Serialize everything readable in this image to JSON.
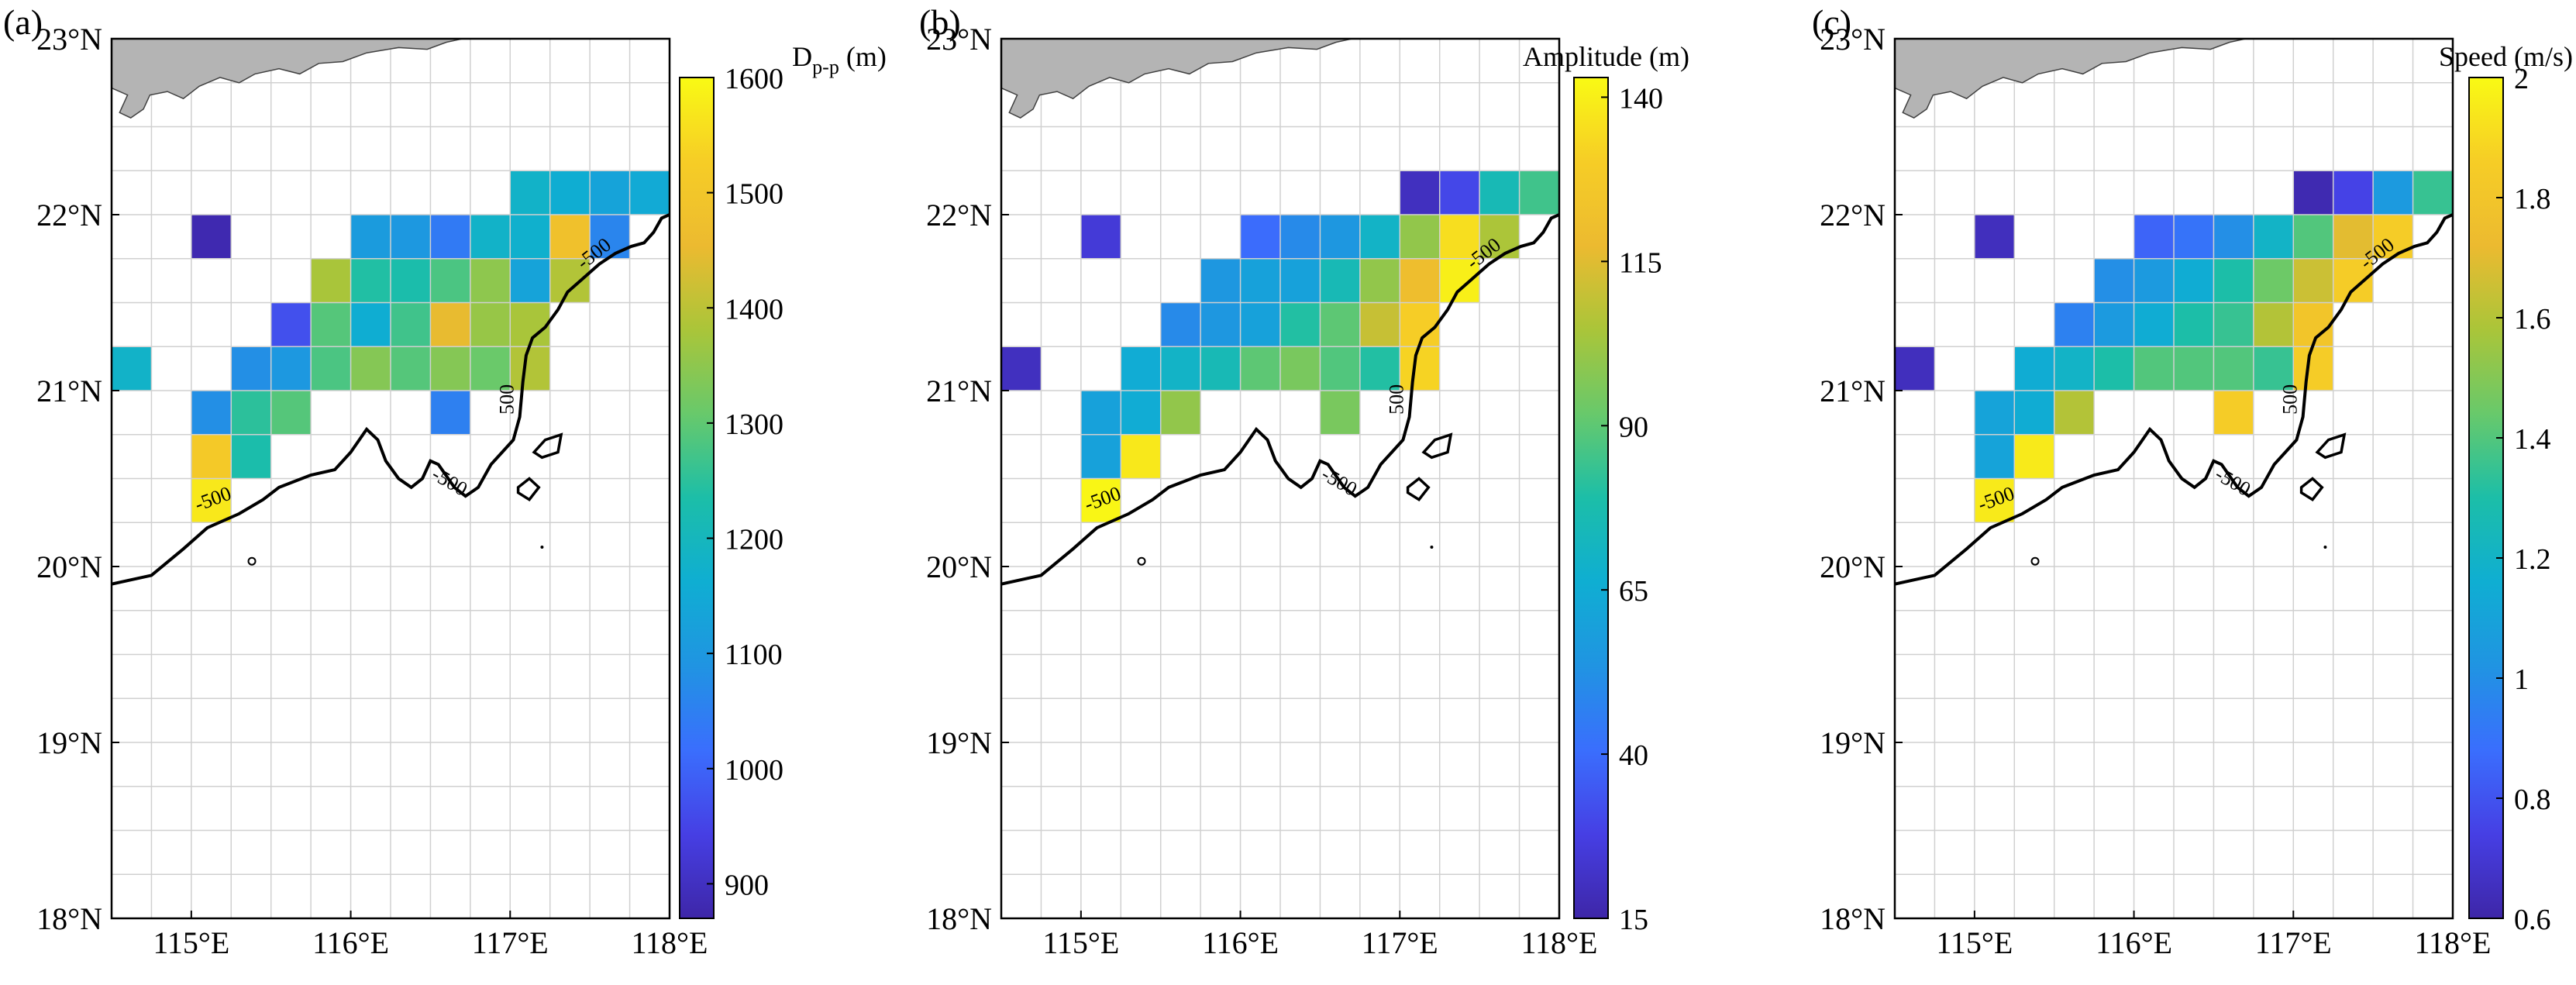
{
  "figure": {
    "panels": [
      {
        "label": "(a)",
        "colorbar_label": "Dp-p (m)",
        "colorbar_label_main": "D",
        "colorbar_label_sub": "p-p",
        "colorbar_label_unit": " (m)"
      },
      {
        "label": "(b)",
        "colorbar_label": "Amplitude (m)"
      },
      {
        "label": "(c)",
        "colorbar_label": "Speed (m/s)"
      }
    ],
    "contour_label": "-500",
    "contour_label_vertical": "500"
  },
  "chart_data": [
    {
      "type": "heatmap",
      "title": "(a)",
      "colorbar_label": "Dp-p (m)",
      "x_ticks": [
        "115°E",
        "116°E",
        "117°E",
        "118°E"
      ],
      "x_tick_values": [
        115,
        116,
        117,
        118
      ],
      "y_ticks": [
        "18°N",
        "19°N",
        "20°N",
        "21°N",
        "22°N",
        "23°N"
      ],
      "y_tick_values": [
        18,
        19,
        20,
        21,
        22,
        23
      ],
      "xlim": [
        114.5,
        118
      ],
      "ylim": [
        18,
        23
      ],
      "grid_step": 0.25,
      "clim": [
        870,
        1600
      ],
      "colorbar_ticks": [
        900,
        1000,
        1100,
        1200,
        1300,
        1400,
        1500,
        1600
      ],
      "cells": [
        {
          "lon": 115.0,
          "lat": 21.75,
          "v": 880
        },
        {
          "lon": 116.0,
          "lat": 21.75,
          "v": 1110
        },
        {
          "lon": 116.25,
          "lat": 21.75,
          "v": 1100
        },
        {
          "lon": 116.5,
          "lat": 21.75,
          "v": 1040
        },
        {
          "lon": 116.75,
          "lat": 21.75,
          "v": 1180
        },
        {
          "lon": 117.0,
          "lat": 21.75,
          "v": 1170
        },
        {
          "lon": 117.25,
          "lat": 21.75,
          "v": 1480
        },
        {
          "lon": 117.5,
          "lat": 21.75,
          "v": 1060
        },
        {
          "lon": 117.0,
          "lat": 22.0,
          "v": 1180
        },
        {
          "lon": 117.25,
          "lat": 22.0,
          "v": 1160
        },
        {
          "lon": 117.5,
          "lat": 22.0,
          "v": 1130
        },
        {
          "lon": 117.75,
          "lat": 22.0,
          "v": 1150
        },
        {
          "lon": 115.75,
          "lat": 21.5,
          "v": 1380
        },
        {
          "lon": 116.0,
          "lat": 21.5,
          "v": 1240
        },
        {
          "lon": 116.25,
          "lat": 21.5,
          "v": 1230
        },
        {
          "lon": 116.5,
          "lat": 21.5,
          "v": 1280
        },
        {
          "lon": 116.75,
          "lat": 21.5,
          "v": 1350
        },
        {
          "lon": 117.0,
          "lat": 21.5,
          "v": 1130
        },
        {
          "lon": 117.25,
          "lat": 21.5,
          "v": 1390
        },
        {
          "lon": 115.5,
          "lat": 21.25,
          "v": 970
        },
        {
          "lon": 115.75,
          "lat": 21.25,
          "v": 1290
        },
        {
          "lon": 116.0,
          "lat": 21.25,
          "v": 1160
        },
        {
          "lon": 116.25,
          "lat": 21.25,
          "v": 1270
        },
        {
          "lon": 116.5,
          "lat": 21.25,
          "v": 1450
        },
        {
          "lon": 116.75,
          "lat": 21.25,
          "v": 1360
        },
        {
          "lon": 117.0,
          "lat": 21.25,
          "v": 1380
        },
        {
          "lon": 114.5,
          "lat": 21.0,
          "v": 1180
        },
        {
          "lon": 115.25,
          "lat": 21.0,
          "v": 1080
        },
        {
          "lon": 115.5,
          "lat": 21.0,
          "v": 1100
        },
        {
          "lon": 115.75,
          "lat": 21.0,
          "v": 1280
        },
        {
          "lon": 116.0,
          "lat": 21.0,
          "v": 1340
        },
        {
          "lon": 116.25,
          "lat": 21.0,
          "v": 1290
        },
        {
          "lon": 116.5,
          "lat": 21.0,
          "v": 1340
        },
        {
          "lon": 116.75,
          "lat": 21.0,
          "v": 1310
        },
        {
          "lon": 117.0,
          "lat": 21.0,
          "v": 1390
        },
        {
          "lon": 115.0,
          "lat": 20.75,
          "v": 1080
        },
        {
          "lon": 115.25,
          "lat": 20.75,
          "v": 1250
        },
        {
          "lon": 115.5,
          "lat": 20.75,
          "v": 1290
        },
        {
          "lon": 116.5,
          "lat": 20.75,
          "v": 1050
        },
        {
          "lon": 115.0,
          "lat": 20.5,
          "v": 1510
        },
        {
          "lon": 115.25,
          "lat": 20.5,
          "v": 1230
        },
        {
          "lon": 115.0,
          "lat": 20.25,
          "v": 1570
        }
      ]
    },
    {
      "type": "heatmap",
      "title": "(b)",
      "colorbar_label": "Amplitude (m)",
      "x_ticks": [
        "115°E",
        "116°E",
        "117°E",
        "118°E"
      ],
      "x_tick_values": [
        115,
        116,
        117,
        118
      ],
      "y_ticks": [
        "18°N",
        "19°N",
        "20°N",
        "21°N",
        "22°N",
        "23°N"
      ],
      "y_tick_values": [
        18,
        19,
        20,
        21,
        22,
        23
      ],
      "xlim": [
        114.5,
        118
      ],
      "ylim": [
        18,
        23
      ],
      "grid_step": 0.25,
      "clim": [
        15,
        143
      ],
      "colorbar_ticks": [
        15,
        40,
        65,
        90,
        115,
        140
      ],
      "cells": [
        {
          "lon": 115.0,
          "lat": 21.75,
          "v": 25
        },
        {
          "lon": 117.0,
          "lat": 22.0,
          "v": 20
        },
        {
          "lon": 117.25,
          "lat": 22.0,
          "v": 30
        },
        {
          "lon": 117.5,
          "lat": 22.0,
          "v": 75
        },
        {
          "lon": 117.75,
          "lat": 22.0,
          "v": 85
        },
        {
          "lon": 116.0,
          "lat": 21.75,
          "v": 40
        },
        {
          "lon": 116.25,
          "lat": 21.75,
          "v": 50
        },
        {
          "lon": 116.5,
          "lat": 21.75,
          "v": 55
        },
        {
          "lon": 116.75,
          "lat": 21.75,
          "v": 70
        },
        {
          "lon": 117.0,
          "lat": 21.75,
          "v": 100
        },
        {
          "lon": 117.25,
          "lat": 21.75,
          "v": 135
        },
        {
          "lon": 117.5,
          "lat": 21.75,
          "v": 105
        },
        {
          "lon": 115.75,
          "lat": 21.5,
          "v": 55
        },
        {
          "lon": 116.0,
          "lat": 21.5,
          "v": 60
        },
        {
          "lon": 116.25,
          "lat": 21.5,
          "v": 60
        },
        {
          "lon": 116.5,
          "lat": 21.5,
          "v": 75
        },
        {
          "lon": 116.75,
          "lat": 21.5,
          "v": 100
        },
        {
          "lon": 117.0,
          "lat": 21.5,
          "v": 120
        },
        {
          "lon": 117.25,
          "lat": 21.5,
          "v": 140
        },
        {
          "lon": 115.5,
          "lat": 21.25,
          "v": 50
        },
        {
          "lon": 115.75,
          "lat": 21.25,
          "v": 55
        },
        {
          "lon": 116.0,
          "lat": 21.25,
          "v": 60
        },
        {
          "lon": 116.25,
          "lat": 21.25,
          "v": 80
        },
        {
          "lon": 116.5,
          "lat": 21.25,
          "v": 90
        },
        {
          "lon": 116.75,
          "lat": 21.25,
          "v": 110
        },
        {
          "lon": 117.0,
          "lat": 21.25,
          "v": 130
        },
        {
          "lon": 114.5,
          "lat": 21.0,
          "v": 20
        },
        {
          "lon": 115.25,
          "lat": 21.0,
          "v": 65
        },
        {
          "lon": 115.5,
          "lat": 21.0,
          "v": 70
        },
        {
          "lon": 115.75,
          "lat": 21.0,
          "v": 75
        },
        {
          "lon": 116.0,
          "lat": 21.0,
          "v": 90
        },
        {
          "lon": 116.25,
          "lat": 21.0,
          "v": 95
        },
        {
          "lon": 116.5,
          "lat": 21.0,
          "v": 88
        },
        {
          "lon": 116.75,
          "lat": 21.0,
          "v": 80
        },
        {
          "lon": 117.0,
          "lat": 21.0,
          "v": 132
        },
        {
          "lon": 115.0,
          "lat": 20.75,
          "v": 60
        },
        {
          "lon": 115.25,
          "lat": 20.75,
          "v": 65
        },
        {
          "lon": 115.5,
          "lat": 20.75,
          "v": 100
        },
        {
          "lon": 116.5,
          "lat": 20.75,
          "v": 95
        },
        {
          "lon": 115.0,
          "lat": 20.5,
          "v": 60
        },
        {
          "lon": 115.25,
          "lat": 20.5,
          "v": 138
        },
        {
          "lon": 115.0,
          "lat": 20.25,
          "v": 142
        }
      ]
    },
    {
      "type": "heatmap",
      "title": "(c)",
      "colorbar_label": "Speed (m/s)",
      "x_ticks": [
        "115°E",
        "116°E",
        "117°E",
        "118°E"
      ],
      "x_tick_values": [
        115,
        116,
        117,
        118
      ],
      "y_ticks": [
        "18°N",
        "19°N",
        "20°N",
        "21°N",
        "22°N",
        "23°N"
      ],
      "y_tick_values": [
        18,
        19,
        20,
        21,
        22,
        23
      ],
      "xlim": [
        114.5,
        118
      ],
      "ylim": [
        18,
        23
      ],
      "grid_step": 0.25,
      "clim": [
        0.6,
        2.0
      ],
      "colorbar_ticks": [
        "0.6",
        "0.8",
        "1",
        "1.2",
        "1.4",
        "1.6",
        "1.8",
        "2"
      ],
      "colorbar_tick_values": [
        0.6,
        0.8,
        1.0,
        1.2,
        1.4,
        1.6,
        1.8,
        2.0
      ],
      "cells": [
        {
          "lon": 115.0,
          "lat": 21.75,
          "v": 0.65
        },
        {
          "lon": 117.0,
          "lat": 22.0,
          "v": 0.62
        },
        {
          "lon": 117.25,
          "lat": 22.0,
          "v": 0.75
        },
        {
          "lon": 117.5,
          "lat": 22.0,
          "v": 1.05
        },
        {
          "lon": 117.75,
          "lat": 22.0,
          "v": 1.35
        },
        {
          "lon": 116.0,
          "lat": 21.75,
          "v": 0.85
        },
        {
          "lon": 116.25,
          "lat": 21.75,
          "v": 0.9
        },
        {
          "lon": 116.5,
          "lat": 21.75,
          "v": 1.0
        },
        {
          "lon": 116.75,
          "lat": 21.75,
          "v": 1.2
        },
        {
          "lon": 117.0,
          "lat": 21.75,
          "v": 1.4
        },
        {
          "lon": 117.25,
          "lat": 21.75,
          "v": 1.7
        },
        {
          "lon": 117.5,
          "lat": 21.75,
          "v": 1.85
        },
        {
          "lon": 115.75,
          "lat": 21.5,
          "v": 1.0
        },
        {
          "lon": 116.0,
          "lat": 21.5,
          "v": 1.05
        },
        {
          "lon": 116.25,
          "lat": 21.5,
          "v": 1.15
        },
        {
          "lon": 116.5,
          "lat": 21.5,
          "v": 1.3
        },
        {
          "lon": 116.75,
          "lat": 21.5,
          "v": 1.45
        },
        {
          "lon": 117.0,
          "lat": 21.5,
          "v": 1.65
        },
        {
          "lon": 117.25,
          "lat": 21.5,
          "v": 1.85
        },
        {
          "lon": 115.5,
          "lat": 21.25,
          "v": 0.95
        },
        {
          "lon": 115.75,
          "lat": 21.25,
          "v": 1.05
        },
        {
          "lon": 116.0,
          "lat": 21.25,
          "v": 1.15
        },
        {
          "lon": 116.25,
          "lat": 21.25,
          "v": 1.3
        },
        {
          "lon": 116.5,
          "lat": 21.25,
          "v": 1.35
        },
        {
          "lon": 116.75,
          "lat": 21.25,
          "v": 1.6
        },
        {
          "lon": 117.0,
          "lat": 21.25,
          "v": 1.8
        },
        {
          "lon": 114.5,
          "lat": 21.0,
          "v": 0.65
        },
        {
          "lon": 115.25,
          "lat": 21.0,
          "v": 1.15
        },
        {
          "lon": 115.5,
          "lat": 21.0,
          "v": 1.2
        },
        {
          "lon": 115.75,
          "lat": 21.0,
          "v": 1.3
        },
        {
          "lon": 116.0,
          "lat": 21.0,
          "v": 1.4
        },
        {
          "lon": 116.25,
          "lat": 21.0,
          "v": 1.4
        },
        {
          "lon": 116.5,
          "lat": 21.0,
          "v": 1.4
        },
        {
          "lon": 116.75,
          "lat": 21.0,
          "v": 1.35
        },
        {
          "lon": 117.0,
          "lat": 21.0,
          "v": 1.85
        },
        {
          "lon": 115.0,
          "lat": 20.75,
          "v": 1.1
        },
        {
          "lon": 115.25,
          "lat": 20.75,
          "v": 1.15
        },
        {
          "lon": 115.5,
          "lat": 20.75,
          "v": 1.6
        },
        {
          "lon": 116.5,
          "lat": 20.75,
          "v": 1.85
        },
        {
          "lon": 115.0,
          "lat": 20.5,
          "v": 1.1
        },
        {
          "lon": 115.25,
          "lat": 20.5,
          "v": 1.95
        },
        {
          "lon": 115.0,
          "lat": 20.25,
          "v": 1.95
        }
      ]
    }
  ]
}
